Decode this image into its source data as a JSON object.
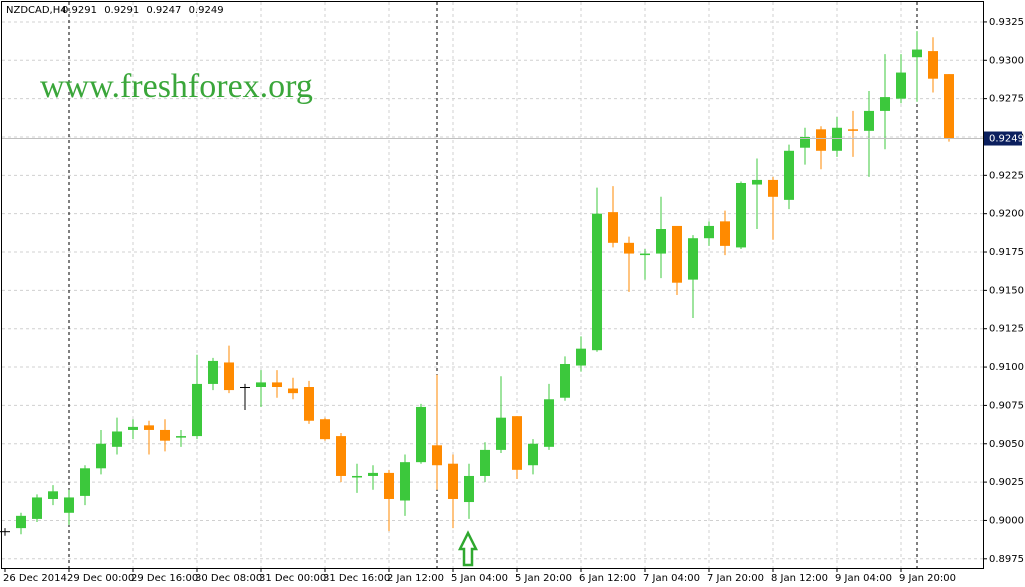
{
  "chart_data": {
    "type": "candlestick",
    "title": "NZDCAD,H4",
    "watermark": "www.freshforex.org",
    "categories": [
      "26 Dec 2014",
      null,
      null,
      null,
      "29 Dec 00:00",
      null,
      null,
      null,
      "29 Dec 16:00",
      null,
      null,
      null,
      "30 Dec 08:00",
      null,
      null,
      null,
      "31 Dec 00:00",
      null,
      null,
      null,
      "31 Dec 16:00",
      null,
      null,
      null,
      "2 Jan 12:00",
      null,
      null,
      null,
      "5 Jan 04:00",
      null,
      null,
      null,
      "5 Jan 20:00",
      null,
      null,
      null,
      "6 Jan 12:00",
      null,
      null,
      null,
      "7 Jan 04:00",
      null,
      null,
      null,
      "7 Jan 20:00",
      null,
      null,
      null,
      "8 Jan 12:00",
      null,
      null,
      null,
      "9 Jan 04:00",
      null,
      null,
      null,
      "9 Jan 20:00",
      null,
      null,
      null
    ],
    "open": [
      0.8993,
      0.8995,
      0.9001,
      0.9014,
      0.9005,
      0.9016,
      0.9034,
      0.9048,
      0.9059,
      0.9062,
      0.9059,
      0.9054,
      0.9055,
      0.9089,
      0.9103,
      0.9087,
      0.9087,
      0.909,
      0.9086,
      0.9087,
      0.9066,
      0.9055,
      0.9028,
      0.9029,
      0.9031,
      0.9013,
      0.9038,
      0.9049,
      0.9037,
      0.9012,
      0.9029,
      0.9046,
      0.9068,
      0.9036,
      0.9048,
      0.908,
      0.9101,
      0.9111,
      0.9201,
      0.9181,
      0.9173,
      0.9174,
      0.9192,
      0.9157,
      0.9184,
      0.9195,
      0.9178,
      0.9219,
      0.9222,
      0.9209,
      0.9243,
      0.9255,
      0.9241,
      0.9255,
      0.9254,
      0.9267,
      0.9275,
      0.9302,
      0.9306,
      0.9291
    ],
    "high": [
      0.8995,
      0.9005,
      0.9017,
      0.9023,
      0.902,
      0.9036,
      0.9059,
      0.9067,
      0.9066,
      0.9065,
      0.9066,
      0.9059,
      0.9108,
      0.9106,
      0.9114,
      0.9089,
      0.9098,
      0.9098,
      0.9093,
      0.9091,
      0.9067,
      0.9057,
      0.9037,
      0.9036,
      0.9033,
      0.9043,
      0.9076,
      0.9095,
      0.9043,
      0.9037,
      0.9051,
      0.9094,
      0.9068,
      0.9053,
      0.9089,
      0.9107,
      0.912,
      0.9217,
      0.9218,
      0.9185,
      0.9177,
      0.9211,
      0.9192,
      0.9186,
      0.9195,
      0.9202,
      0.9221,
      0.9236,
      0.9224,
      0.9245,
      0.9256,
      0.9257,
      0.9263,
      0.9267,
      0.928,
      0.9304,
      0.9304,
      0.9319,
      0.9315,
      0.9291
    ],
    "low": [
      0.899,
      0.8991,
      0.8999,
      0.901,
      0.8997,
      0.901,
      0.903,
      0.9043,
      0.9053,
      0.9043,
      0.9045,
      0.9048,
      0.9053,
      0.9085,
      0.9083,
      0.9072,
      0.9074,
      0.908,
      0.9079,
      0.9063,
      0.9052,
      0.9025,
      0.9018,
      0.902,
      0.8993,
      0.9003,
      0.9037,
      0.902,
      0.8995,
      0.9001,
      0.9025,
      0.9044,
      0.9027,
      0.903,
      0.9046,
      0.9078,
      0.9097,
      0.911,
      0.9178,
      0.9149,
      0.9157,
      0.9158,
      0.9147,
      0.9132,
      0.9179,
      0.9173,
      0.9177,
      0.919,
      0.9183,
      0.9203,
      0.9232,
      0.9229,
      0.9237,
      0.9237,
      0.9224,
      0.9242,
      0.9272,
      0.9273,
      0.9279,
      0.9247
    ],
    "close": [
      0.8993,
      0.9003,
      0.9015,
      0.9019,
      0.9015,
      0.9034,
      0.905,
      0.9058,
      0.9061,
      0.9059,
      0.9052,
      0.9055,
      0.9089,
      0.9104,
      0.9085,
      0.9087,
      0.909,
      0.9087,
      0.9083,
      0.9065,
      0.9053,
      0.9029,
      0.9029,
      0.9031,
      0.9014,
      0.9038,
      0.9074,
      0.9036,
      0.9014,
      0.9029,
      0.9046,
      0.9067,
      0.9033,
      0.905,
      0.9079,
      0.9102,
      0.9112,
      0.92,
      0.9181,
      0.9174,
      0.9174,
      0.919,
      0.9155,
      0.9184,
      0.9192,
      0.9179,
      0.922,
      0.9222,
      0.9211,
      0.9241,
      0.925,
      0.9241,
      0.9256,
      0.9254,
      0.9267,
      0.9276,
      0.9292,
      0.9307,
      0.9288,
      0.9249
    ],
    "up_color": "#3cc83c",
    "down_color": "#ff8a00",
    "doji_color": "#000000",
    "ylim": [
      0.8969,
      0.9338
    ],
    "yticks": [
      0.8975,
      {
        "value": 0.9,
        "label": "0.9000"
      },
      0.9025,
      {
        "value": 0.905,
        "label": "0.9050"
      },
      0.9075,
      {
        "value": 0.91,
        "label": "0.9100"
      },
      0.9125,
      {
        "value": 0.915,
        "label": "0.9150"
      },
      0.9175,
      {
        "value": 0.92,
        "label": "0.9200"
      },
      0.9225,
      {
        "value": 0.925,
        "label": "0.9250"
      },
      0.9275,
      {
        "value": 0.93,
        "label": "0.9300"
      },
      0.9325
    ],
    "grid": true
  }
}
